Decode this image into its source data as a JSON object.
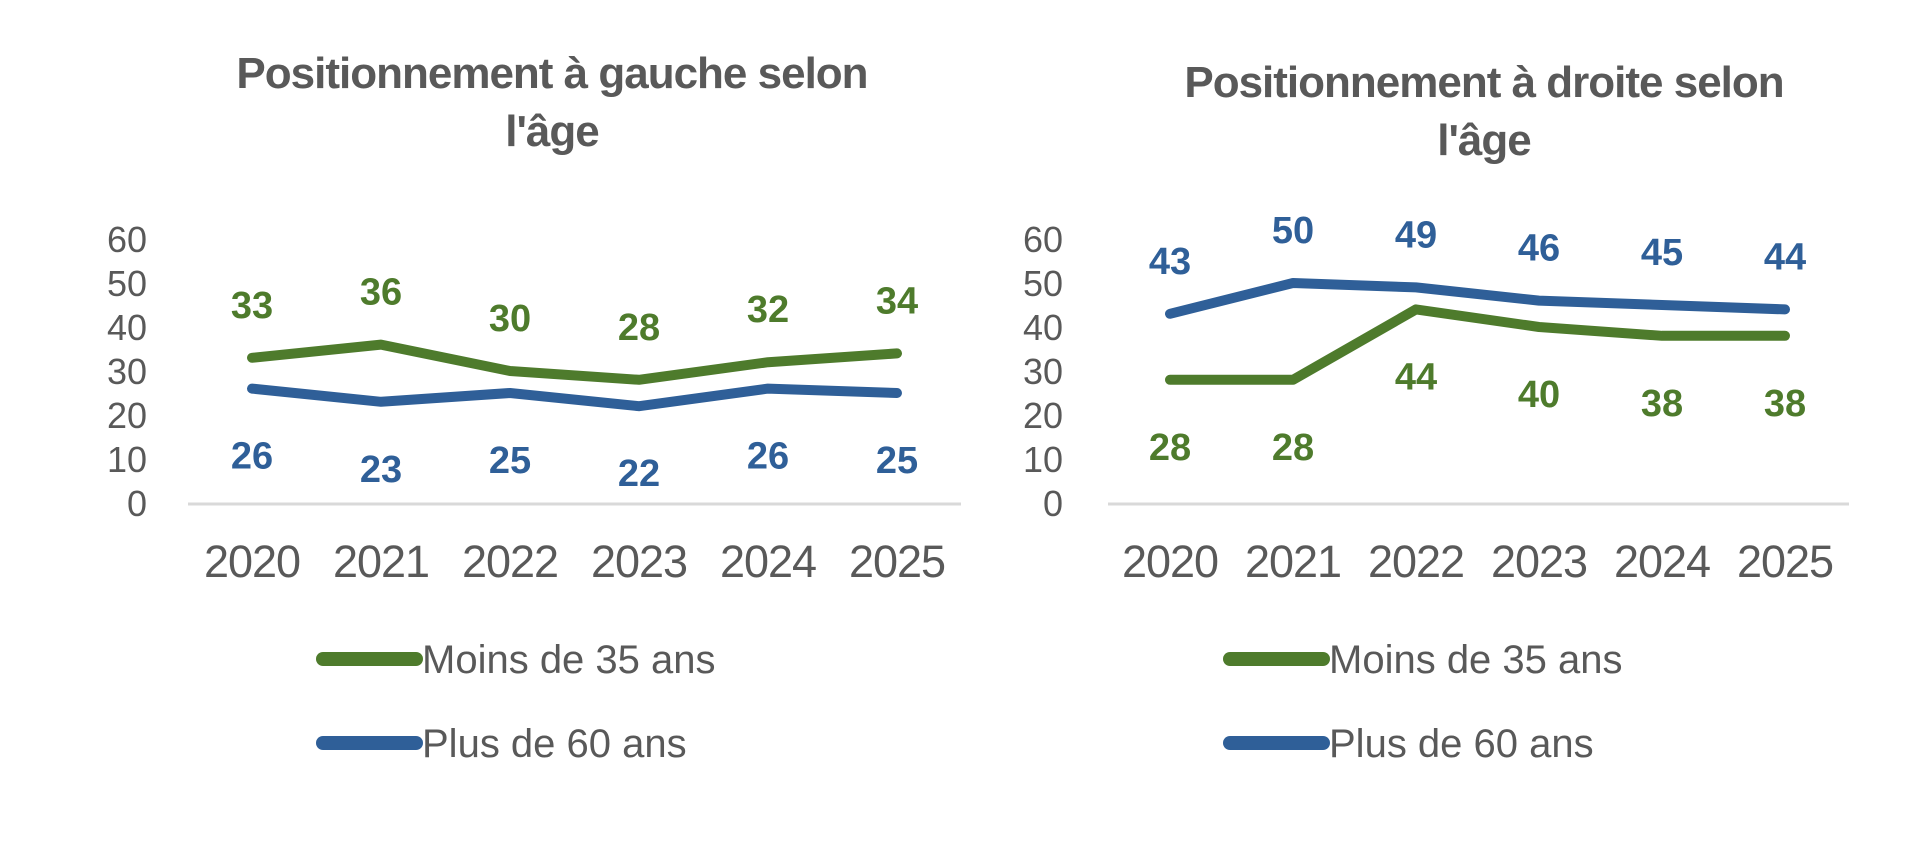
{
  "page": {
    "background": "#ffffff"
  },
  "colors": {
    "series_green": "#4E7B2C",
    "series_blue": "#2F5F98",
    "text_gray": "#595959",
    "axis_line": "#D9D9D9"
  },
  "chart_data": [
    {
      "id": "positionnement-gauche",
      "type": "line",
      "title": "Positionnement à gauche selon l'âge",
      "title_lines": [
        "Positionnement à gauche selon",
        "l'âge"
      ],
      "categories": [
        "2020",
        "2021",
        "2022",
        "2023",
        "2024",
        "2025"
      ],
      "series": [
        {
          "name": "Moins de 35 ans",
          "color": "#4E7B2C",
          "values": [
            33,
            36,
            30,
            28,
            32,
            34
          ],
          "label_position": "above"
        },
        {
          "name": "Plus de 60 ans",
          "color": "#2F5F98",
          "values": [
            26,
            23,
            25,
            22,
            26,
            25
          ],
          "label_position": "below"
        }
      ],
      "xlabel": "",
      "ylabel": "",
      "ylim": [
        0,
        60
      ],
      "yticks": [
        0,
        10,
        20,
        30,
        40,
        50,
        60
      ],
      "grid": false,
      "legend_position": "bottom",
      "legend": [
        "Moins de 35 ans",
        "Plus de 60 ans"
      ]
    },
    {
      "id": "positionnement-droite",
      "type": "line",
      "title": "Positionnement à droite selon l'âge",
      "title_lines": [
        "Positionnement à droite selon",
        "l'âge"
      ],
      "categories": [
        "2020",
        "2021",
        "2022",
        "2023",
        "2024",
        "2025"
      ],
      "series": [
        {
          "name": "Moins de 35 ans",
          "color": "#4E7B2C",
          "values": [
            28,
            28,
            44,
            40,
            38,
            38
          ],
          "label_position": "below"
        },
        {
          "name": "Plus de 60 ans",
          "color": "#2F5F98",
          "values": [
            43,
            50,
            49,
            46,
            45,
            44
          ],
          "label_position": "above"
        }
      ],
      "xlabel": "",
      "ylabel": "",
      "ylim": [
        0,
        60
      ],
      "yticks": [
        0,
        10,
        20,
        30,
        40,
        50,
        60
      ],
      "grid": false,
      "legend_position": "bottom",
      "legend": [
        "Moins de 35 ans",
        "Plus de 60 ans"
      ]
    }
  ]
}
